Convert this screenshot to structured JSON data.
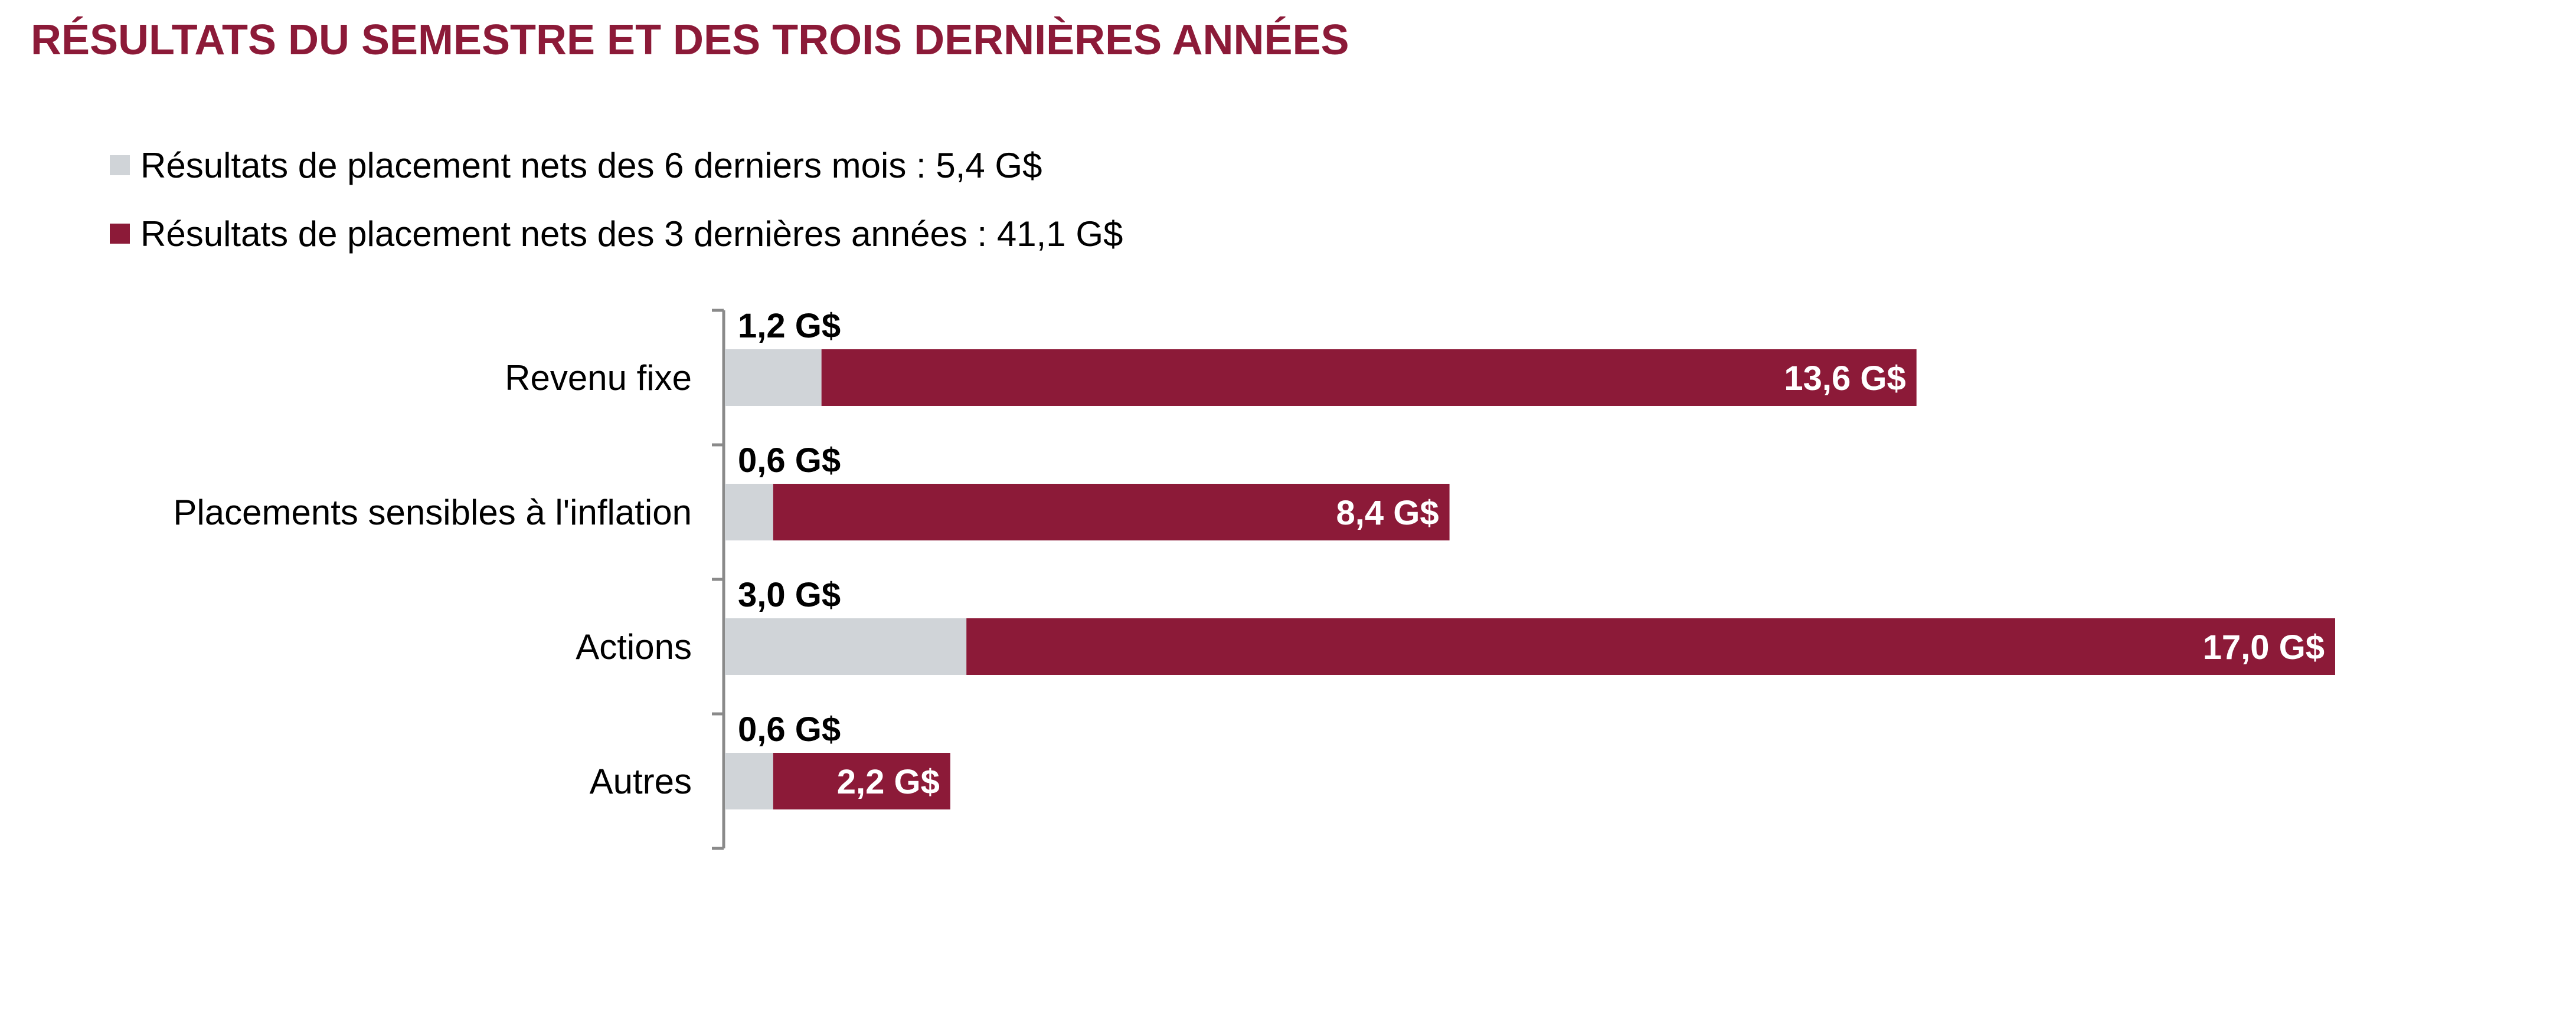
{
  "colors": {
    "title": "#8c1a38",
    "semester": "#d0d4d8",
    "three_years": "#8c1a38",
    "axis": "#8a8a8a",
    "label_dark": "#000000",
    "label_light": "#ffffff"
  },
  "title": "RÉSULTATS DU SEMESTRE ET DES TROIS DERNIÈRES ANNÉES",
  "legend": [
    {
      "label": "Résultats de placement nets des 6 derniers mois : 5,4 G$",
      "color": "#d0d4d8"
    },
    {
      "label": "Résultats de placement nets des 3 dernières années : 41,1 G$",
      "color": "#8c1a38"
    }
  ],
  "chart_data": {
    "type": "bar",
    "orientation": "horizontal",
    "stacked": true,
    "categories": [
      "Revenu fixe",
      "Placements sensibles à l'inflation",
      "Actions",
      "Autres"
    ],
    "series": [
      {
        "name": "Résultats de placement nets des 6 derniers mois : 5,4 G$",
        "values": [
          1.2,
          0.6,
          3.0,
          0.6
        ],
        "labels": [
          "1,2 G$",
          "0,6 G$",
          "3,0 G$",
          "0,6 G$"
        ],
        "color": "#d0d4d8"
      },
      {
        "name": "Résultats de placement nets des 3 dernières années : 41,1 G$",
        "values": [
          13.6,
          8.4,
          17.0,
          2.2
        ],
        "labels": [
          "13,6 G$",
          "8,4 G$",
          "17,0 G$",
          "2,2 G$"
        ],
        "color": "#8c1a38"
      }
    ],
    "unit": "G$",
    "grid": false,
    "legend_position": "top-left"
  }
}
